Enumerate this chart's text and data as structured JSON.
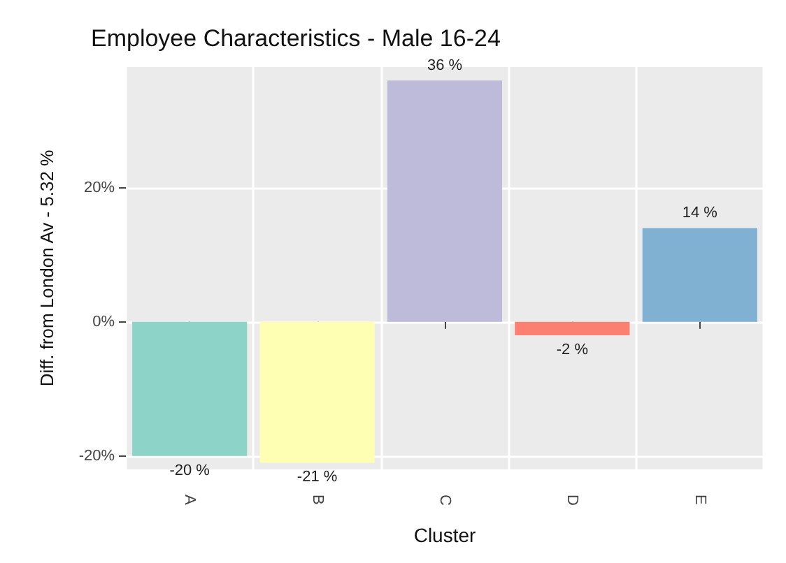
{
  "chart_data": {
    "type": "bar",
    "title": "Employee Characteristics - Male 16-24",
    "xlabel": "Cluster",
    "ylabel": "Diff. from London Av - 5.32 %",
    "categories": [
      "A",
      "B",
      "C",
      "D",
      "E"
    ],
    "values": [
      -20,
      -21,
      36,
      -2,
      14
    ],
    "colors": [
      "#8dd3c7",
      "#ffffb3",
      "#bebada",
      "#fb8072",
      "#80b1d3"
    ],
    "value_labels": [
      "-20 %",
      "-21 %",
      "36 %",
      "-2 %",
      "14 %"
    ],
    "ylim": [
      -22,
      38
    ],
    "yticks": [
      {
        "value": -20,
        "label": "-20%"
      },
      {
        "value": 0,
        "label": "0%"
      },
      {
        "value": 20,
        "label": "20%"
      }
    ],
    "grid": true
  }
}
